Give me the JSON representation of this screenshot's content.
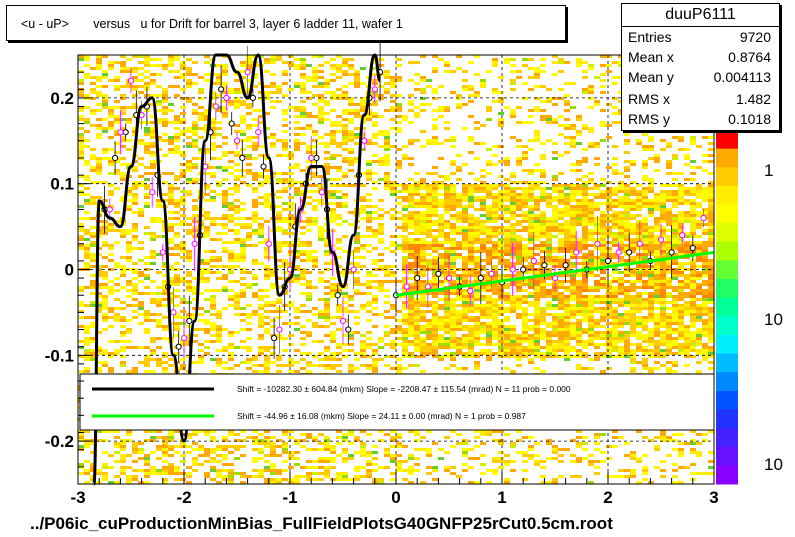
{
  "title": "<u - uP>       versus   u for Drift for barrel 3, layer 6 ladder 11, wafer 1",
  "stats": {
    "name": "duuP6111",
    "rows": [
      {
        "label": "Entries",
        "value": "9720"
      },
      {
        "label": "Mean x",
        "value": "0.8764"
      },
      {
        "label": "Mean y",
        "value": "0.004113"
      },
      {
        "label": "RMS x",
        "value": "1.482"
      },
      {
        "label": "RMS y",
        "value": "0.1018"
      }
    ]
  },
  "footer": "../P06ic_cuProductionMinBias_FullFieldPlotsG40GNFP25rCut0.5cm.root",
  "legend": {
    "entries": [
      {
        "color": "#000000",
        "text": "Shift = -10282.30 ± 604.84 (mkm) Slope = -2208.47 ± 115.54 (mrad)  N = 11 prob = 0.000"
      },
      {
        "color": "#00ff00",
        "text": "Shift =    -44.96 ± 16.08 (mkm) Slope =     24.11 ± 0.00 (mrad)  N = 1 prob = 0.987"
      }
    ]
  },
  "colorbar": {
    "labels": [
      "1",
      "10",
      "10"
    ]
  },
  "chart_data": {
    "type": "scatter",
    "title": "<u - uP>       versus   u for Drift for barrel 3, layer 6 ladder 11, wafer 1",
    "xlim": [
      -3,
      3
    ],
    "ylim": [
      -0.25,
      0.25
    ],
    "x_ticks": [
      -3,
      -2,
      -1,
      0,
      1,
      2,
      3
    ],
    "x_tick_labels": [
      "-3",
      "-2",
      "-1",
      "0",
      "1",
      "2",
      "3"
    ],
    "y_ticks": [
      -0.2,
      -0.1,
      0,
      0.1,
      0.2
    ],
    "y_tick_labels": [
      "-0.2",
      "-0.1",
      "0",
      "0.1",
      "0.2"
    ],
    "grid": true,
    "background": "2D occupancy heat map (yellow/orange/green cells)",
    "series": [
      {
        "kind": "profile-black",
        "color": "#000000",
        "x": [
          -2.75,
          -2.65,
          -2.55,
          -2.45,
          -2.35,
          -2.25,
          -2.15,
          -2.05,
          -1.95,
          -1.85,
          -1.75,
          -1.65,
          -1.55,
          -1.45,
          -1.35,
          -1.25,
          -1.15,
          -1.05,
          -0.95,
          -0.85,
          -0.75,
          -0.65,
          -0.55,
          -0.45,
          -0.35,
          -0.25,
          -0.15,
          0.0,
          0.2,
          0.4,
          0.6,
          0.8,
          1.0,
          1.2,
          1.4,
          1.6,
          1.8,
          2.0,
          2.2,
          2.4,
          2.6,
          2.8
        ],
        "y": [
          0.07,
          0.13,
          0.16,
          0.18,
          0.19,
          0.11,
          -0.02,
          -0.09,
          -0.06,
          0.04,
          0.16,
          0.21,
          0.17,
          0.13,
          0.2,
          0.12,
          -0.08,
          -0.02,
          0.05,
          0.1,
          0.13,
          0.07,
          -0.03,
          -0.07,
          0.11,
          0.2,
          0.23,
          -0.03,
          -0.01,
          -0.005,
          -0.02,
          -0.01,
          -0.015,
          0.0,
          0.005,
          0.005,
          0.0,
          0.01,
          0.02,
          0.01,
          0.02,
          0.025
        ]
      },
      {
        "kind": "profile-magenta",
        "color": "#ff00ff",
        "x": [
          -2.7,
          -2.6,
          -2.5,
          -2.4,
          -2.3,
          -2.2,
          -2.1,
          -2.0,
          -1.9,
          -1.8,
          -1.7,
          -1.6,
          -1.5,
          -1.4,
          -1.3,
          -1.2,
          -1.1,
          -1.0,
          -0.9,
          -0.8,
          -0.7,
          -0.6,
          -0.5,
          -0.4,
          -0.3,
          -0.2,
          0.1,
          0.3,
          0.5,
          0.7,
          0.9,
          1.1,
          1.3,
          1.5,
          1.7,
          1.9,
          2.1,
          2.3,
          2.5,
          2.7,
          2.9
        ],
        "y": [
          0.07,
          0.16,
          0.22,
          0.18,
          0.09,
          0.02,
          -0.05,
          -0.08,
          0.03,
          0.12,
          0.19,
          0.2,
          0.15,
          0.23,
          0.16,
          0.03,
          -0.07,
          0.0,
          0.07,
          0.13,
          0.09,
          0.02,
          -0.06,
          0.0,
          0.15,
          0.21,
          -0.02,
          -0.02,
          -0.01,
          -0.025,
          -0.005,
          0.0,
          0.01,
          -0.01,
          0.02,
          0.03,
          0.02,
          0.03,
          0.035,
          0.04,
          0.06
        ]
      },
      {
        "kind": "fit-black",
        "color": "#000000",
        "x": [
          -2.85,
          -2.8,
          -2.7,
          -2.6,
          -2.5,
          -2.4,
          -2.3,
          -2.2,
          -2.1,
          -2.0,
          -1.9,
          -1.8,
          -1.7,
          -1.6,
          -1.5,
          -1.4,
          -1.3,
          -1.2,
          -1.1,
          -1.0,
          -0.9,
          -0.8,
          -0.7,
          -0.6,
          -0.5,
          -0.4,
          -0.3,
          -0.2,
          -0.15
        ],
        "y": [
          -0.25,
          0.08,
          0.06,
          0.05,
          0.12,
          0.19,
          0.2,
          0.08,
          -0.1,
          -0.2,
          -0.06,
          0.15,
          0.26,
          0.28,
          0.23,
          0.2,
          0.25,
          0.13,
          -0.03,
          -0.01,
          0.07,
          0.12,
          0.12,
          0.02,
          -0.02,
          0.04,
          0.18,
          0.27,
          0.22
        ]
      },
      {
        "kind": "fit-green",
        "color": "#00ff00",
        "x": [
          0.0,
          3.0
        ],
        "y": [
          -0.03,
          0.02
        ]
      }
    ]
  }
}
